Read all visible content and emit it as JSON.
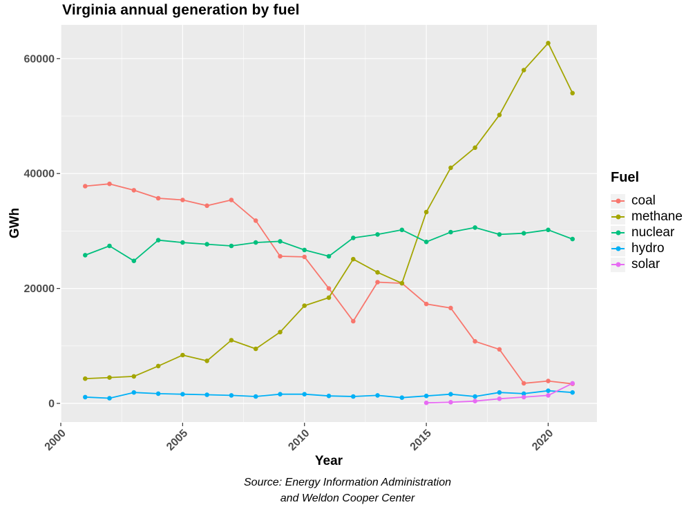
{
  "title": "Virginia annual generation by fuel",
  "caption": {
    "line1": "Source: Energy Information Administration",
    "line2": "and Weldon Cooper Center"
  },
  "legend": {
    "title": "Fuel",
    "position": "right"
  },
  "chart_data": {
    "type": "line",
    "title": "Virginia annual generation by fuel",
    "xlabel": "Year",
    "ylabel": "GWh",
    "x": [
      2001,
      2002,
      2003,
      2004,
      2005,
      2006,
      2007,
      2008,
      2009,
      2010,
      2011,
      2012,
      2013,
      2014,
      2015,
      2016,
      2017,
      2018,
      2019,
      2020,
      2021
    ],
    "series": [
      {
        "name": "coal",
        "color": "#F8766D",
        "values": [
          37800,
          38200,
          37100,
          35700,
          35400,
          34400,
          35400,
          31800,
          25600,
          25500,
          20000,
          14300,
          21100,
          20900,
          17300,
          16600,
          10800,
          9400,
          3500,
          3900,
          3400
        ]
      },
      {
        "name": "methane",
        "color": "#A3A500",
        "values": [
          4300,
          4500,
          4700,
          6500,
          8400,
          7400,
          11000,
          9500,
          12400,
          17000,
          18400,
          25100,
          22800,
          20900,
          33300,
          41000,
          44500,
          50200,
          58000,
          62700,
          54000
        ]
      },
      {
        "name": "nuclear",
        "color": "#00BF7D",
        "values": [
          25800,
          27400,
          24800,
          28400,
          28000,
          27700,
          27400,
          28000,
          28200,
          26700,
          25600,
          28800,
          29400,
          30200,
          28100,
          29800,
          30600,
          29400,
          29600,
          30200,
          28600
        ]
      },
      {
        "name": "hydro",
        "color": "#00B0F6",
        "values": [
          1100,
          900,
          1900,
          1700,
          1600,
          1500,
          1400,
          1200,
          1600,
          1600,
          1300,
          1200,
          1400,
          1000,
          1300,
          1600,
          1200,
          1900,
          1700,
          2200,
          1900
        ]
      },
      {
        "name": "solar",
        "color": "#E76BF3",
        "values": [
          null,
          null,
          null,
          null,
          null,
          null,
          null,
          null,
          null,
          null,
          null,
          null,
          null,
          null,
          100,
          200,
          400,
          800,
          1100,
          1400,
          3500
        ]
      }
    ],
    "x_ticks": [
      2000,
      2005,
      2010,
      2015,
      2020
    ],
    "y_ticks": [
      0,
      20000,
      40000,
      60000
    ],
    "x_minor_ticks": [
      2002.5,
      2007.5,
      2012.5,
      2017.5
    ],
    "y_minor_ticks": [
      10000,
      30000,
      50000
    ],
    "xlim": [
      2000,
      2022
    ],
    "ylim": [
      -3245,
      65870
    ],
    "grid": true,
    "legend_position": "right",
    "panel_bg": "#EBEBEB",
    "grid_color": "#FFFFFF",
    "axis_text_color": "#4D4D4D",
    "tick_mark_color": "#333333"
  }
}
